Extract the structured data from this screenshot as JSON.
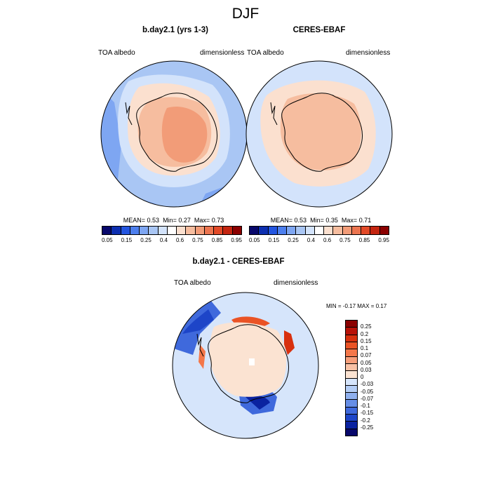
{
  "title": "DJF",
  "panel_left": {
    "title": "b.day2.1 (yrs 1-3)",
    "variable": "TOA albedo",
    "units": "dimensionless",
    "mean_label": "MEAN=",
    "mean": "0.53",
    "min_label": "Min=",
    "min": "0.27",
    "max_label": "Max=",
    "max": "0.73"
  },
  "panel_right": {
    "title": "CERES-EBAF",
    "variable": "TOA albedo",
    "units": "dimensionless",
    "mean_label": "MEAN=",
    "mean": "0.53",
    "min_label": "Min=",
    "min": "0.35",
    "max_label": "Max=",
    "max": "0.71"
  },
  "panel_diff": {
    "title": "b.day2.1 - CERES-EBAF",
    "variable": "TOA albedo",
    "units": "dimensionless",
    "minmax": "MIN = -0.17 MAX = 0.17"
  },
  "albedo_colorbar": {
    "ticks": [
      "0.05",
      "0.15",
      "0.25",
      "0.4",
      "0.6",
      "0.75",
      "0.85",
      "0.95"
    ],
    "colors": [
      "#08086b",
      "#0d2fb0",
      "#2355e0",
      "#4d7fee",
      "#7ea6f2",
      "#a9c6f4",
      "#d3e3fb",
      "#ffffff",
      "#fbe0cf",
      "#f6bd9f",
      "#f29c78",
      "#ec7550",
      "#e24a28",
      "#c42510",
      "#8b0000"
    ]
  },
  "diff_colorbar": {
    "ticks": [
      "0.25",
      "0.2",
      "0.15",
      "0.1",
      "0.07",
      "0.05",
      "0.03",
      "0",
      "-0.03",
      "-0.05",
      "-0.07",
      "-0.1",
      "-0.15",
      "-0.2",
      "-0.25"
    ],
    "colors": [
      "#8b0000",
      "#b81208",
      "#d8300e",
      "#ea5325",
      "#f4774a",
      "#f69e7a",
      "#f8c1a5",
      "#fbe3d2",
      "#d6e5fb",
      "#b4cdf5",
      "#8fb0ee",
      "#668ee6",
      "#3f69dc",
      "#1d45c8",
      "#0a22a0",
      "#08086b"
    ]
  }
}
